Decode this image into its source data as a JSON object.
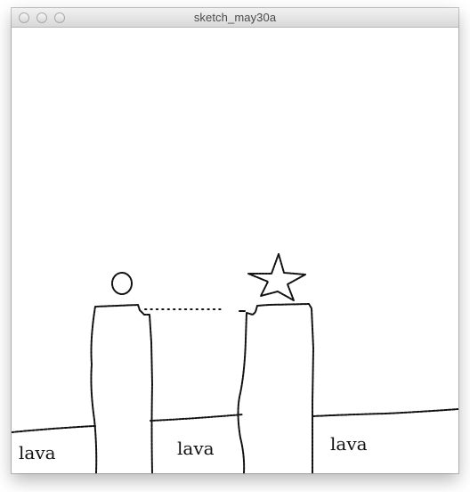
{
  "window": {
    "title": "sketch_may30a"
  },
  "titlebar": {
    "buttons": [
      "close",
      "minimize",
      "zoom"
    ]
  },
  "sketch": {
    "lava_labels": [
      "lava",
      "lava",
      "lava"
    ],
    "icons": {
      "player": "circle-player-icon",
      "goal": "star-goal-icon"
    },
    "colors": {
      "ink": "#111111",
      "background": "#ffffff"
    }
  }
}
